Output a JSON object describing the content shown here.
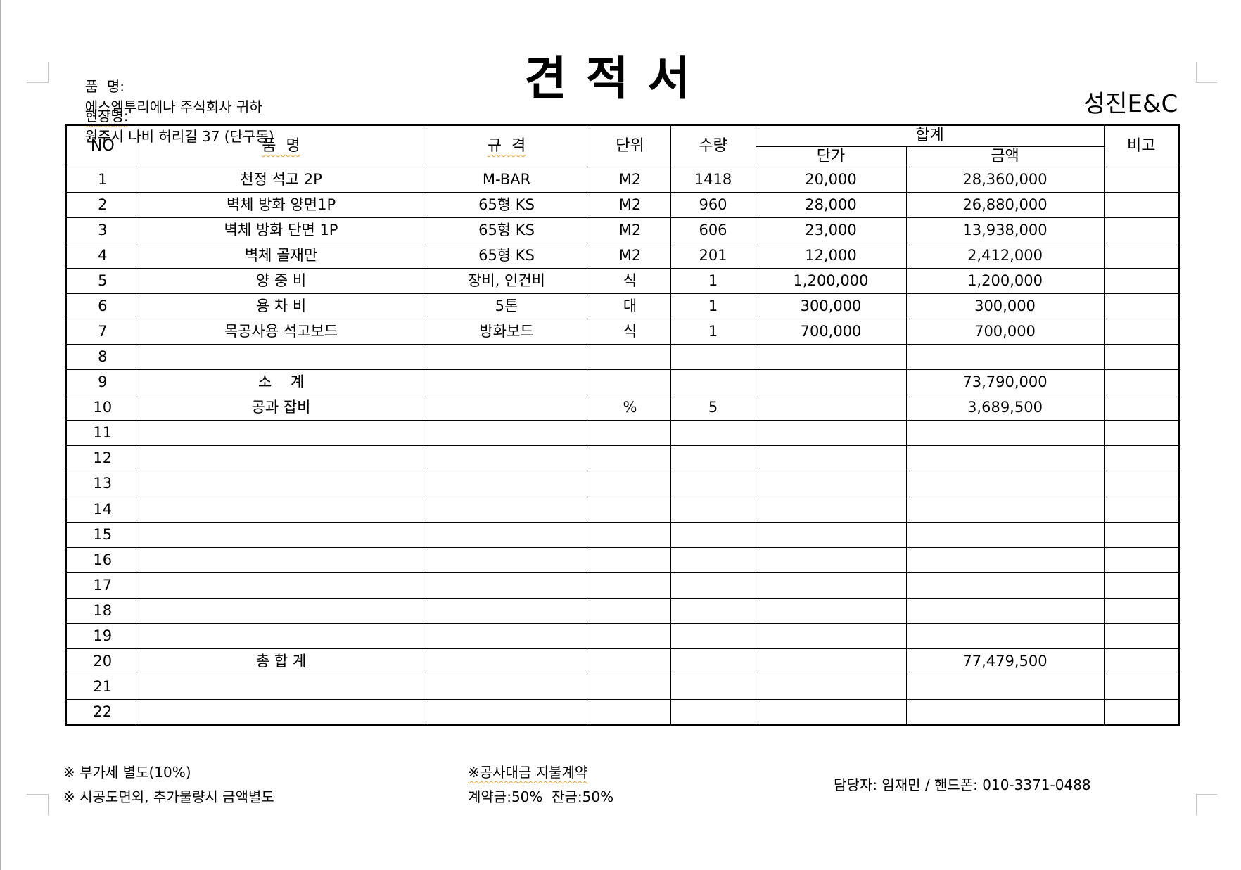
{
  "header": {
    "recipient_label": "품  명:",
    "recipient_value": "에스엠투리에나 주식회사 귀하",
    "site_label": "현장명:",
    "site_value": "원주시 나비 허리길 37 (단구동)",
    "title": "견 적 서",
    "company": "성진E&C"
  },
  "table": {
    "headers": {
      "no": "NO",
      "item": "품  명",
      "spec": "규  격",
      "unit": "단위",
      "qty": "수량",
      "total_group": "합계",
      "unit_price": "단가",
      "amount": "금액",
      "remark": "비고"
    },
    "rows": [
      {
        "no": "1",
        "item": "천정 석고 2P",
        "spec": "M-BAR",
        "unit": "M2",
        "qty": "1418",
        "unit_price": "20,000",
        "amount": "28,360,000",
        "remark": ""
      },
      {
        "no": "2",
        "item": "벽체 방화 양면1P",
        "spec": "65형 KS",
        "unit": "M2",
        "qty": "960",
        "unit_price": "28,000",
        "amount": "26,880,000",
        "remark": ""
      },
      {
        "no": "3",
        "item": "벽체 방화 단면 1P",
        "spec": "65형 KS",
        "unit": "M2",
        "qty": "606",
        "unit_price": "23,000",
        "amount": "13,938,000",
        "remark": ""
      },
      {
        "no": "4",
        "item": "벽체 골재만",
        "spec": "65형 KS",
        "unit": "M2",
        "qty": "201",
        "unit_price": "12,000",
        "amount": "2,412,000",
        "remark": ""
      },
      {
        "no": "5",
        "item": "양 중 비",
        "spec": "장비, 인건비",
        "unit": "식",
        "qty": "1",
        "unit_price": "1,200,000",
        "amount": "1,200,000",
        "remark": ""
      },
      {
        "no": "6",
        "item": "용 차 비",
        "spec": "5톤",
        "unit": "대",
        "qty": "1",
        "unit_price": "300,000",
        "amount": "300,000",
        "remark": ""
      },
      {
        "no": "7",
        "item": "목공사용 석고보드",
        "spec": "방화보드",
        "unit": "식",
        "qty": "1",
        "unit_price": "700,000",
        "amount": "700,000",
        "remark": ""
      },
      {
        "no": "8",
        "item": "",
        "spec": "",
        "unit": "",
        "qty": "",
        "unit_price": "",
        "amount": "",
        "remark": ""
      },
      {
        "no": "9",
        "item": "소    계",
        "spec": "",
        "unit": "",
        "qty": "",
        "unit_price": "",
        "amount": "73,790,000",
        "remark": ""
      },
      {
        "no": "10",
        "item": "공과 잡비",
        "spec": "",
        "unit": "%",
        "qty": "5",
        "unit_price": "",
        "amount": "3,689,500",
        "remark": ""
      },
      {
        "no": "11",
        "item": "",
        "spec": "",
        "unit": "",
        "qty": "",
        "unit_price": "",
        "amount": "",
        "remark": ""
      },
      {
        "no": "12",
        "item": "",
        "spec": "",
        "unit": "",
        "qty": "",
        "unit_price": "",
        "amount": "",
        "remark": ""
      },
      {
        "no": "13",
        "item": "",
        "spec": "",
        "unit": "",
        "qty": "",
        "unit_price": "",
        "amount": "",
        "remark": ""
      },
      {
        "no": "14",
        "item": "",
        "spec": "",
        "unit": "",
        "qty": "",
        "unit_price": "",
        "amount": "",
        "remark": ""
      },
      {
        "no": "15",
        "item": "",
        "spec": "",
        "unit": "",
        "qty": "",
        "unit_price": "",
        "amount": "",
        "remark": ""
      },
      {
        "no": "16",
        "item": "",
        "spec": "",
        "unit": "",
        "qty": "",
        "unit_price": "",
        "amount": "",
        "remark": ""
      },
      {
        "no": "17",
        "item": "",
        "spec": "",
        "unit": "",
        "qty": "",
        "unit_price": "",
        "amount": "",
        "remark": ""
      },
      {
        "no": "18",
        "item": "",
        "spec": "",
        "unit": "",
        "qty": "",
        "unit_price": "",
        "amount": "",
        "remark": ""
      },
      {
        "no": "19",
        "item": "",
        "spec": "",
        "unit": "",
        "qty": "",
        "unit_price": "",
        "amount": "",
        "remark": ""
      },
      {
        "no": "20",
        "item": "총 합 계",
        "spec": "",
        "unit": "",
        "qty": "",
        "unit_price": "",
        "amount": "77,479,500",
        "remark": ""
      },
      {
        "no": "21",
        "item": "",
        "spec": "",
        "unit": "",
        "qty": "",
        "unit_price": "",
        "amount": "",
        "remark": ""
      },
      {
        "no": "22",
        "item": "",
        "spec": "",
        "unit": "",
        "qty": "",
        "unit_price": "",
        "amount": "",
        "remark": ""
      }
    ]
  },
  "footer": {
    "note_vat": "※ 부가세 별도(10%)",
    "note_extra": "※ 시공도면외, 추가물량시 금액별도",
    "payment_title": "※공사대금 지불계약",
    "payment_terms": "계약금:50%  잔금:50%",
    "contact": "담당자: 임재민 / 핸드폰: 010-3371-0488"
  }
}
